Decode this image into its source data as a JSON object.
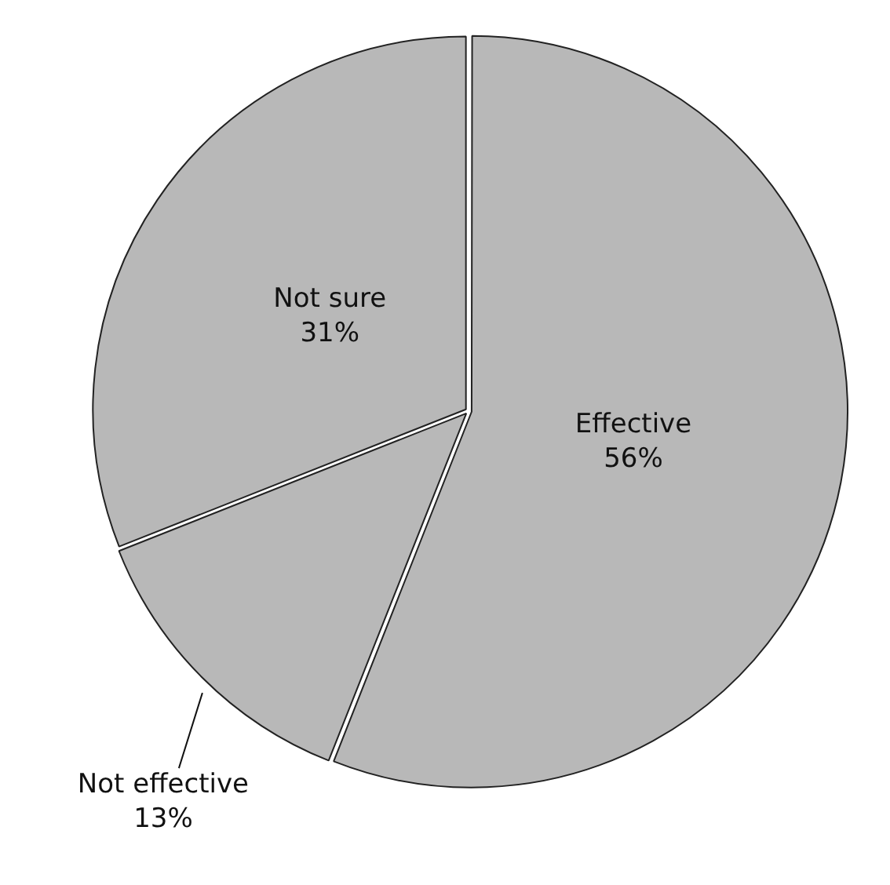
{
  "chart_data": {
    "type": "pie",
    "categories": [
      "Effective",
      "Not effective",
      "Not sure"
    ],
    "values": [
      56,
      13,
      31
    ],
    "value_labels": [
      "56%",
      "13%",
      "31%"
    ],
    "colors": [
      "#b8b8b8",
      "#b8b8b8",
      "#b8b8b8"
    ],
    "legend": false
  }
}
